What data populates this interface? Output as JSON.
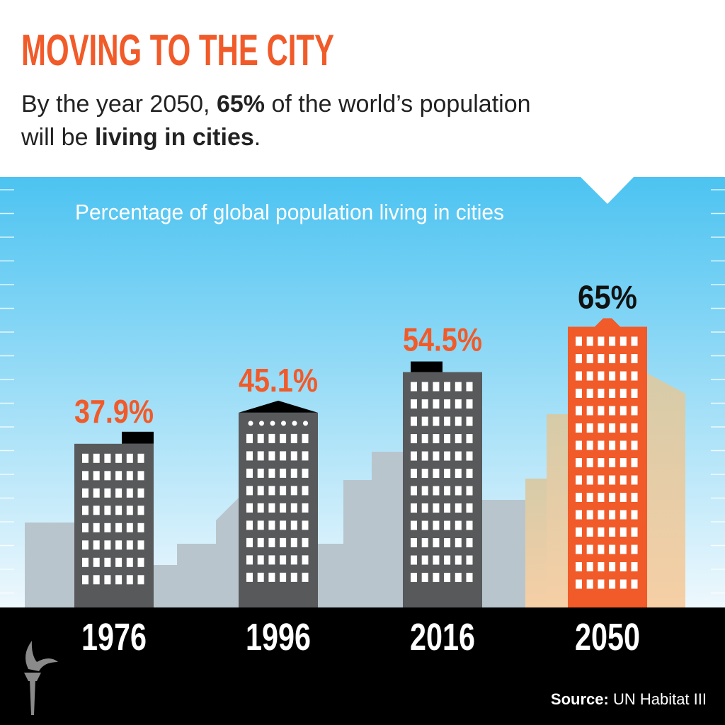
{
  "header": {
    "title": "MOVING TO THE CITY",
    "subtitle": [
      "By the year 2050, ",
      "65%",
      " of the world’s population",
      "will be ",
      "living in cities",
      "."
    ]
  },
  "chart_data": {
    "type": "bar",
    "title": "Percentage of global population living in cities",
    "categories": [
      "1976",
      "1996",
      "2016",
      "2050"
    ],
    "values": [
      37.9,
      45.1,
      54.5,
      65
    ],
    "value_labels": [
      "37.9%",
      "45.1%",
      "54.5%",
      "65%"
    ],
    "colors": [
      "#58595b",
      "#58595b",
      "#58595b",
      "#f15a29"
    ],
    "label_colors": [
      "#f15a29",
      "#f15a29",
      "#f15a29",
      "#111111"
    ]
  },
  "footer": {
    "source_label": "Source:",
    "source": "UN Habitat III"
  }
}
